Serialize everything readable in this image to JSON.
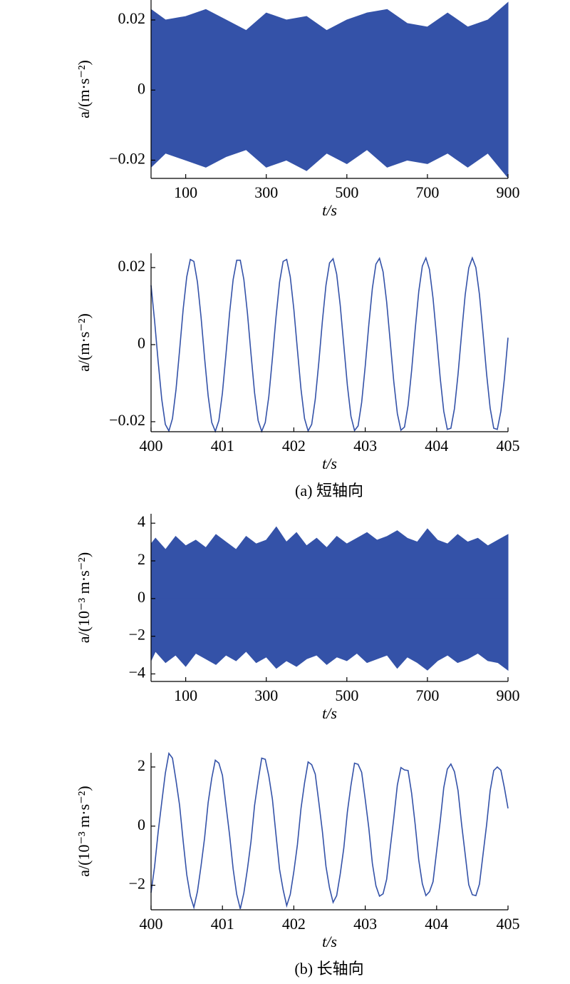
{
  "chart_data": [
    {
      "type": "band",
      "ylabel": "a/(m·s⁻²)",
      "xlabel": "t/s",
      "color": "#3452a8",
      "x": [
        14,
        50,
        100,
        150,
        200,
        250,
        300,
        350,
        400,
        450,
        500,
        550,
        600,
        650,
        700,
        750,
        800,
        850,
        900
      ],
      "upper": [
        0.023,
        0.02,
        0.021,
        0.023,
        0.02,
        0.017,
        0.022,
        0.02,
        0.021,
        0.017,
        0.02,
        0.022,
        0.023,
        0.019,
        0.018,
        0.022,
        0.018,
        0.02,
        0.025
      ],
      "lower": [
        -0.022,
        -0.018,
        -0.02,
        -0.022,
        -0.019,
        -0.017,
        -0.022,
        -0.02,
        -0.023,
        -0.018,
        -0.021,
        -0.017,
        -0.022,
        -0.02,
        -0.021,
        -0.018,
        -0.022,
        -0.018,
        -0.025
      ],
      "xlim": [
        14,
        900
      ],
      "xticks": [
        100,
        300,
        500,
        700,
        900
      ],
      "ylim": [
        -0.0252,
        0.0257
      ],
      "yticks": [
        {
          "value": -0.02,
          "label": "−0.02"
        },
        0,
        0.02
      ]
    },
    {
      "type": "line",
      "ylabel": "a/(m·s⁻²)",
      "xlabel": "t/s",
      "color": "#3452a8",
      "x": [
        400,
        400.05,
        400.1,
        400.15,
        400.2,
        400.25,
        400.3,
        400.35,
        400.4,
        400.45,
        400.5,
        400.55,
        400.6,
        400.65,
        400.7,
        400.75,
        400.8,
        400.85,
        400.9,
        400.95,
        401,
        401.05,
        401.1,
        401.15,
        401.2,
        401.25,
        401.3,
        401.35,
        401.4,
        401.45,
        401.5,
        401.55,
        401.6,
        401.65,
        401.7,
        401.75,
        401.8,
        401.85,
        401.9,
        401.95,
        402,
        402.05,
        402.1,
        402.15,
        402.2,
        402.25,
        402.3,
        402.35,
        402.4,
        402.45,
        402.5,
        402.55,
        402.6,
        402.65,
        402.7,
        402.75,
        402.8,
        402.85,
        402.9,
        402.95,
        403,
        403.05,
        403.1,
        403.15,
        403.2,
        403.25,
        403.3,
        403.35,
        403.4,
        403.45,
        403.5,
        403.55,
        403.6,
        403.65,
        403.7,
        403.75,
        403.8,
        403.85,
        403.9,
        403.95,
        404,
        404.05,
        404.1,
        404.15,
        404.2,
        404.25,
        404.3,
        404.35,
        404.4,
        404.45,
        404.5,
        404.55,
        404.6,
        404.65,
        404.7,
        404.75,
        404.8,
        404.85,
        404.9,
        404.95,
        405
      ],
      "values": [
        0.0154,
        0.0061,
        -0.0045,
        -0.0142,
        -0.0207,
        -0.0224,
        -0.0192,
        -0.0116,
        -0.0014,
        0.0092,
        0.0176,
        0.0221,
        0.0216,
        0.0162,
        0.0072,
        -0.0035,
        -0.0133,
        -0.0202,
        -0.0225,
        -0.0197,
        -0.0125,
        -0.0024,
        0.0082,
        0.0169,
        0.0219,
        0.0219,
        0.0169,
        0.0082,
        -0.0024,
        -0.0125,
        -0.0197,
        -0.0225,
        -0.0202,
        -0.0134,
        -0.0035,
        0.0071,
        0.0162,
        0.0216,
        0.0221,
        0.0176,
        0.0092,
        -0.0013,
        -0.0115,
        -0.0192,
        -0.0224,
        -0.0207,
        -0.0142,
        -0.0046,
        0.0061,
        0.0154,
        0.0212,
        0.0223,
        0.0183,
        0.0102,
        -0.0002,
        -0.0106,
        -0.0186,
        -0.0223,
        -0.0211,
        -0.015,
        -0.0056,
        0.0051,
        0.0146,
        0.0209,
        0.0224,
        0.0189,
        0.0111,
        0.0008,
        -0.0096,
        -0.0179,
        -0.0222,
        -0.0214,
        -0.0158,
        -0.0067,
        0.004,
        0.0138,
        0.0204,
        0.0225,
        0.0195,
        0.012,
        0.0019,
        -0.0086,
        -0.0173,
        -0.022,
        -0.0217,
        -0.0166,
        -0.0077,
        0.0029,
        0.0129,
        0.0199,
        0.0225,
        0.02,
        0.013,
        0.003,
        -0.0076,
        -0.0165,
        -0.0217,
        -0.022,
        -0.0173,
        -0.0087,
        0.0018
      ],
      "xlim": [
        400,
        405
      ],
      "xticks": [
        400,
        401,
        402,
        403,
        404,
        405
      ],
      "ylim": [
        -0.0226,
        0.0237
      ],
      "yticks": [
        {
          "value": -0.02,
          "label": "−0.02"
        },
        0,
        0.02
      ]
    },
    {
      "type": "band",
      "ylabel": "a/(10⁻³ m·s⁻²)",
      "xlabel": "t/s",
      "color": "#3452a8",
      "x": [
        14,
        25,
        50,
        75,
        100,
        125,
        150,
        175,
        200,
        225,
        250,
        275,
        300,
        325,
        350,
        375,
        400,
        425,
        450,
        475,
        500,
        525,
        550,
        575,
        600,
        625,
        650,
        675,
        700,
        725,
        750,
        775,
        800,
        825,
        850,
        875,
        900
      ],
      "upper": [
        2.9,
        3.2,
        2.6,
        3.3,
        2.8,
        3.1,
        2.7,
        3.4,
        3.0,
        2.6,
        3.3,
        2.9,
        3.1,
        3.8,
        3.0,
        3.5,
        2.8,
        3.2,
        2.7,
        3.3,
        2.9,
        3.2,
        3.5,
        3.1,
        3.3,
        3.6,
        3.2,
        3.0,
        3.7,
        3.1,
        2.9,
        3.4,
        3.0,
        3.2,
        2.8,
        3.1,
        3.4
      ],
      "lower": [
        -3.3,
        -2.8,
        -3.4,
        -3.0,
        -3.6,
        -2.9,
        -3.2,
        -3.5,
        -3.0,
        -3.3,
        -2.8,
        -3.4,
        -3.1,
        -3.7,
        -3.3,
        -3.6,
        -3.2,
        -3.0,
        -3.5,
        -3.1,
        -3.3,
        -2.9,
        -3.4,
        -3.2,
        -3.0,
        -3.7,
        -3.1,
        -3.4,
        -3.8,
        -3.3,
        -3.0,
        -3.4,
        -3.2,
        -2.9,
        -3.3,
        -3.4,
        -3.8
      ],
      "xlim": [
        14,
        900
      ],
      "xticks": [
        100,
        300,
        500,
        700,
        900
      ],
      "ylim": [
        -4.4,
        4.5
      ],
      "yticks": [
        {
          "value": -4,
          "label": "−4"
        },
        {
          "value": -2,
          "label": "−2"
        },
        0,
        2,
        4
      ]
    },
    {
      "type": "line",
      "ylabel": "a/(10⁻³ m·s⁻²)",
      "xlabel": "t/s",
      "color": "#3452a8",
      "x": [
        400,
        400.05,
        400.1,
        400.15,
        400.2,
        400.25,
        400.3,
        400.35,
        400.4,
        400.45,
        400.5,
        400.55,
        400.6,
        400.65,
        400.7,
        400.75,
        400.8,
        400.85,
        400.9,
        400.95,
        401,
        401.05,
        401.1,
        401.15,
        401.2,
        401.25,
        401.3,
        401.35,
        401.4,
        401.45,
        401.5,
        401.55,
        401.6,
        401.65,
        401.7,
        401.75,
        401.8,
        401.85,
        401.9,
        401.95,
        402,
        402.05,
        402.1,
        402.15,
        402.2,
        402.25,
        402.3,
        402.35,
        402.4,
        402.45,
        402.5,
        402.55,
        402.6,
        402.65,
        402.7,
        402.75,
        402.8,
        402.85,
        402.9,
        402.95,
        403,
        403.05,
        403.1,
        403.15,
        403.2,
        403.25,
        403.3,
        403.35,
        403.4,
        403.45,
        403.5,
        403.55,
        403.6,
        403.65,
        403.7,
        403.75,
        403.8,
        403.85,
        403.9,
        403.95,
        404,
        404.05,
        404.1,
        404.15,
        404.2,
        404.25,
        404.3,
        404.35,
        404.4,
        404.45,
        404.5,
        404.55,
        404.6,
        404.65,
        404.7,
        404.75,
        404.8,
        404.85,
        404.9,
        404.95,
        405
      ],
      "values": [
        -2.25,
        -1.36,
        -0.19,
        0.81,
        1.79,
        2.46,
        2.3,
        1.54,
        0.7,
        -0.51,
        -1.64,
        -2.36,
        -2.75,
        -2.21,
        -1.35,
        -0.4,
        0.8,
        1.62,
        2.23,
        2.13,
        1.72,
        0.7,
        -0.3,
        -1.45,
        -2.31,
        -2.8,
        -2.26,
        -1.45,
        -0.52,
        0.7,
        1.54,
        2.3,
        2.26,
        1.69,
        0.91,
        -0.29,
        -1.46,
        -2.15,
        -2.69,
        -2.31,
        -1.54,
        -0.63,
        0.59,
        1.46,
        2.17,
        2.08,
        1.76,
        0.81,
        -0.18,
        -1.36,
        -2.09,
        -2.58,
        -2.35,
        -1.62,
        -0.74,
        0.48,
        1.38,
        2.13,
        2.09,
        1.82,
        0.91,
        -0.06,
        -1.26,
        -2.02,
        -2.37,
        -2.29,
        -1.8,
        -0.75,
        0.27,
        1.39,
        1.98,
        1.9,
        1.88,
        1.11,
        0.05,
        -1.15,
        -1.95,
        -2.35,
        -2.22,
        -1.88,
        -0.85,
        0.16,
        1.3,
        1.93,
        2.1,
        1.84,
        1.2,
        0.06,
        -0.95,
        -1.98,
        -2.32,
        -2.35,
        -1.96,
        -0.96,
        0.04,
        1.2,
        1.88,
        2.0,
        1.89,
        1.29,
        0.6
      ],
      "xlim": [
        400,
        405
      ],
      "xticks": [
        400,
        401,
        402,
        403,
        404,
        405
      ],
      "ylim": [
        -2.83,
        2.48
      ],
      "yticks": [
        {
          "value": -2,
          "label": "−2"
        },
        0,
        2
      ]
    }
  ],
  "captions": [
    "(a) 短轴向",
    "(b) 长轴向"
  ]
}
